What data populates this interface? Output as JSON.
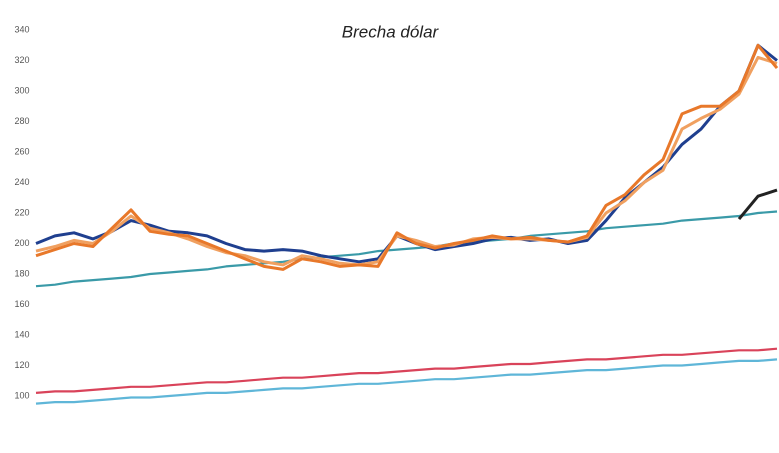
{
  "chart_data": {
    "type": "line",
    "title": "Brecha dólar",
    "categories": [
      null,
      null,
      null,
      null,
      null,
      null,
      null,
      null,
      null,
      null,
      null,
      null,
      null,
      null,
      null,
      null,
      null,
      null,
      null,
      null,
      null,
      null,
      null,
      null,
      null,
      null,
      null,
      null,
      null,
      null,
      null,
      null,
      null,
      null,
      null,
      null,
      null,
      null,
      null,
      null
    ],
    "series": [
      {
        "color": "#3a9aa8",
        "values": [
          172,
          173,
          175,
          176,
          177,
          178,
          180,
          181,
          182,
          183,
          185,
          186,
          187,
          188,
          190,
          191,
          192,
          193,
          195,
          196,
          197,
          198,
          200,
          201,
          202,
          203,
          205,
          206,
          207,
          208,
          210,
          211,
          212,
          213,
          215,
          216,
          217,
          218,
          220,
          221
        ]
      },
      {
        "color": "#d9435a",
        "values": [
          102,
          103,
          103,
          104,
          105,
          106,
          106,
          107,
          108,
          109,
          109,
          110,
          111,
          112,
          112,
          113,
          114,
          115,
          115,
          116,
          117,
          118,
          118,
          119,
          120,
          121,
          121,
          122,
          123,
          124,
          124,
          125,
          126,
          127,
          127,
          128,
          129,
          130,
          130,
          131
        ]
      },
      {
        "color": "#5fb6d8",
        "values": [
          95,
          96,
          96,
          97,
          98,
          99,
          99,
          100,
          101,
          102,
          102,
          103,
          104,
          105,
          105,
          106,
          107,
          108,
          108,
          109,
          110,
          111,
          111,
          112,
          113,
          114,
          114,
          115,
          116,
          117,
          117,
          118,
          119,
          120,
          120,
          121,
          122,
          123,
          123,
          124
        ]
      },
      {
        "color": "#222222",
        "values": [
          null,
          null,
          null,
          null,
          null,
          null,
          null,
          null,
          null,
          null,
          null,
          null,
          null,
          null,
          null,
          null,
          null,
          null,
          null,
          null,
          null,
          null,
          null,
          null,
          null,
          null,
          null,
          null,
          null,
          null,
          null,
          null,
          null,
          null,
          null,
          null,
          null,
          216,
          231,
          235
        ]
      },
      {
        "color": "#1f3f8f",
        "values": [
          200,
          205,
          207,
          203,
          208,
          215,
          212,
          208,
          207,
          205,
          200,
          196,
          195,
          196,
          195,
          192,
          190,
          188,
          190,
          205,
          200,
          196,
          198,
          200,
          203,
          204,
          202,
          203,
          200,
          202,
          215,
          230,
          240,
          250,
          265,
          275,
          290,
          300,
          330,
          320
        ]
      },
      {
        "color": "#f0a060",
        "values": [
          195,
          198,
          202,
          200,
          208,
          218,
          210,
          207,
          203,
          198,
          194,
          192,
          188,
          186,
          192,
          190,
          187,
          186,
          188,
          205,
          202,
          198,
          199,
          203,
          204,
          203,
          203,
          202,
          201,
          204,
          220,
          228,
          240,
          248,
          275,
          282,
          288,
          298,
          322,
          318
        ]
      },
      {
        "color": "#e8782a",
        "values": [
          192,
          196,
          200,
          198,
          210,
          222,
          208,
          206,
          205,
          200,
          195,
          190,
          185,
          183,
          190,
          188,
          185,
          186,
          185,
          207,
          200,
          197,
          200,
          202,
          205,
          203,
          204,
          202,
          201,
          205,
          225,
          232,
          245,
          255,
          285,
          290,
          290,
          300,
          330,
          315
        ]
      }
    ],
    "ylim": [
      92,
      344
    ],
    "yticks": [
      100,
      120,
      140,
      160,
      180,
      200,
      220,
      240,
      260,
      280,
      300,
      320,
      340
    ]
  }
}
